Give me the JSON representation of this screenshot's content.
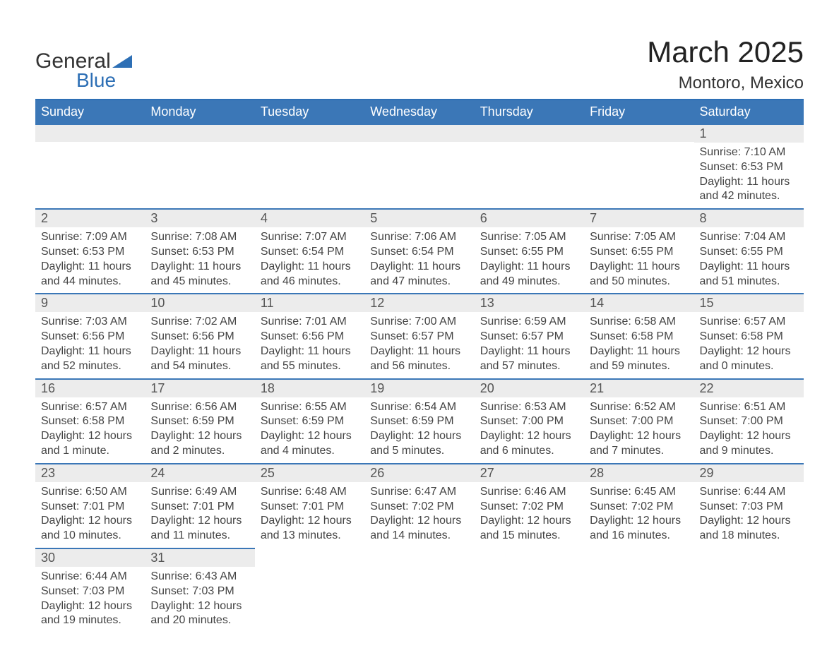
{
  "logo": {
    "text1": "General",
    "text2": "Blue"
  },
  "title": "March 2025",
  "location": "Montoro, Mexico",
  "colors": {
    "header_bg": "#3b77b7",
    "header_text": "#ffffff",
    "row_border": "#3b77b7",
    "daynum_bg": "#ececec",
    "body_bg": "#ffffff",
    "text": "#444444",
    "logo_blue": "#2d6fb5"
  },
  "weekdays": [
    "Sunday",
    "Monday",
    "Tuesday",
    "Wednesday",
    "Thursday",
    "Friday",
    "Saturday"
  ],
  "weeks": [
    [
      {
        "num": "",
        "lines": []
      },
      {
        "num": "",
        "lines": []
      },
      {
        "num": "",
        "lines": []
      },
      {
        "num": "",
        "lines": []
      },
      {
        "num": "",
        "lines": []
      },
      {
        "num": "",
        "lines": []
      },
      {
        "num": "1",
        "lines": [
          "Sunrise: 7:10 AM",
          "Sunset: 6:53 PM",
          "Daylight: 11 hours and 42 minutes."
        ]
      }
    ],
    [
      {
        "num": "2",
        "lines": [
          "Sunrise: 7:09 AM",
          "Sunset: 6:53 PM",
          "Daylight: 11 hours and 44 minutes."
        ]
      },
      {
        "num": "3",
        "lines": [
          "Sunrise: 7:08 AM",
          "Sunset: 6:53 PM",
          "Daylight: 11 hours and 45 minutes."
        ]
      },
      {
        "num": "4",
        "lines": [
          "Sunrise: 7:07 AM",
          "Sunset: 6:54 PM",
          "Daylight: 11 hours and 46 minutes."
        ]
      },
      {
        "num": "5",
        "lines": [
          "Sunrise: 7:06 AM",
          "Sunset: 6:54 PM",
          "Daylight: 11 hours and 47 minutes."
        ]
      },
      {
        "num": "6",
        "lines": [
          "Sunrise: 7:05 AM",
          "Sunset: 6:55 PM",
          "Daylight: 11 hours and 49 minutes."
        ]
      },
      {
        "num": "7",
        "lines": [
          "Sunrise: 7:05 AM",
          "Sunset: 6:55 PM",
          "Daylight: 11 hours and 50 minutes."
        ]
      },
      {
        "num": "8",
        "lines": [
          "Sunrise: 7:04 AM",
          "Sunset: 6:55 PM",
          "Daylight: 11 hours and 51 minutes."
        ]
      }
    ],
    [
      {
        "num": "9",
        "lines": [
          "Sunrise: 7:03 AM",
          "Sunset: 6:56 PM",
          "Daylight: 11 hours and 52 minutes."
        ]
      },
      {
        "num": "10",
        "lines": [
          "Sunrise: 7:02 AM",
          "Sunset: 6:56 PM",
          "Daylight: 11 hours and 54 minutes."
        ]
      },
      {
        "num": "11",
        "lines": [
          "Sunrise: 7:01 AM",
          "Sunset: 6:56 PM",
          "Daylight: 11 hours and 55 minutes."
        ]
      },
      {
        "num": "12",
        "lines": [
          "Sunrise: 7:00 AM",
          "Sunset: 6:57 PM",
          "Daylight: 11 hours and 56 minutes."
        ]
      },
      {
        "num": "13",
        "lines": [
          "Sunrise: 6:59 AM",
          "Sunset: 6:57 PM",
          "Daylight: 11 hours and 57 minutes."
        ]
      },
      {
        "num": "14",
        "lines": [
          "Sunrise: 6:58 AM",
          "Sunset: 6:58 PM",
          "Daylight: 11 hours and 59 minutes."
        ]
      },
      {
        "num": "15",
        "lines": [
          "Sunrise: 6:57 AM",
          "Sunset: 6:58 PM",
          "Daylight: 12 hours and 0 minutes."
        ]
      }
    ],
    [
      {
        "num": "16",
        "lines": [
          "Sunrise: 6:57 AM",
          "Sunset: 6:58 PM",
          "Daylight: 12 hours and 1 minute."
        ]
      },
      {
        "num": "17",
        "lines": [
          "Sunrise: 6:56 AM",
          "Sunset: 6:59 PM",
          "Daylight: 12 hours and 2 minutes."
        ]
      },
      {
        "num": "18",
        "lines": [
          "Sunrise: 6:55 AM",
          "Sunset: 6:59 PM",
          "Daylight: 12 hours and 4 minutes."
        ]
      },
      {
        "num": "19",
        "lines": [
          "Sunrise: 6:54 AM",
          "Sunset: 6:59 PM",
          "Daylight: 12 hours and 5 minutes."
        ]
      },
      {
        "num": "20",
        "lines": [
          "Sunrise: 6:53 AM",
          "Sunset: 7:00 PM",
          "Daylight: 12 hours and 6 minutes."
        ]
      },
      {
        "num": "21",
        "lines": [
          "Sunrise: 6:52 AM",
          "Sunset: 7:00 PM",
          "Daylight: 12 hours and 7 minutes."
        ]
      },
      {
        "num": "22",
        "lines": [
          "Sunrise: 6:51 AM",
          "Sunset: 7:00 PM",
          "Daylight: 12 hours and 9 minutes."
        ]
      }
    ],
    [
      {
        "num": "23",
        "lines": [
          "Sunrise: 6:50 AM",
          "Sunset: 7:01 PM",
          "Daylight: 12 hours and 10 minutes."
        ]
      },
      {
        "num": "24",
        "lines": [
          "Sunrise: 6:49 AM",
          "Sunset: 7:01 PM",
          "Daylight: 12 hours and 11 minutes."
        ]
      },
      {
        "num": "25",
        "lines": [
          "Sunrise: 6:48 AM",
          "Sunset: 7:01 PM",
          "Daylight: 12 hours and 13 minutes."
        ]
      },
      {
        "num": "26",
        "lines": [
          "Sunrise: 6:47 AM",
          "Sunset: 7:02 PM",
          "Daylight: 12 hours and 14 minutes."
        ]
      },
      {
        "num": "27",
        "lines": [
          "Sunrise: 6:46 AM",
          "Sunset: 7:02 PM",
          "Daylight: 12 hours and 15 minutes."
        ]
      },
      {
        "num": "28",
        "lines": [
          "Sunrise: 6:45 AM",
          "Sunset: 7:02 PM",
          "Daylight: 12 hours and 16 minutes."
        ]
      },
      {
        "num": "29",
        "lines": [
          "Sunrise: 6:44 AM",
          "Sunset: 7:03 PM",
          "Daylight: 12 hours and 18 minutes."
        ]
      }
    ],
    [
      {
        "num": "30",
        "lines": [
          "Sunrise: 6:44 AM",
          "Sunset: 7:03 PM",
          "Daylight: 12 hours and 19 minutes."
        ]
      },
      {
        "num": "31",
        "lines": [
          "Sunrise: 6:43 AM",
          "Sunset: 7:03 PM",
          "Daylight: 12 hours and 20 minutes."
        ]
      },
      {
        "num": "",
        "lines": []
      },
      {
        "num": "",
        "lines": []
      },
      {
        "num": "",
        "lines": []
      },
      {
        "num": "",
        "lines": []
      },
      {
        "num": "",
        "lines": []
      }
    ]
  ]
}
